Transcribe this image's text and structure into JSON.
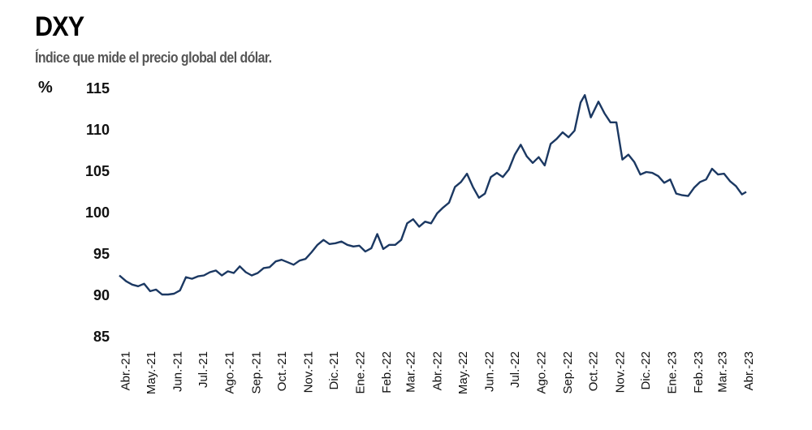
{
  "chart_data": {
    "type": "line",
    "title": "DXY",
    "subtitle": "Índice que mide el precio global del dólar.",
    "ylabel": "%",
    "xlabel": "",
    "ylim": [
      85,
      115
    ],
    "yticks": [
      85,
      90,
      95,
      100,
      105,
      110,
      115
    ],
    "xtick_labels": [
      "Abr.-21",
      "May.-21",
      "Jun.-21",
      "Jul.-21",
      "Ago.-21",
      "Sep.-21",
      "Oct.-21",
      "Nov.-21",
      "Dic.-21",
      "Ene.-22",
      "Feb.-22",
      "Mar.-22",
      "Abr.-22",
      "May.-22",
      "Jun.-22",
      "Jul.-22",
      "Ago.-22",
      "Sep.-22",
      "Oct.-22",
      "Nov.-22",
      "Dic.-22",
      "Ene.-23",
      "Feb.-23",
      "Mar.-23",
      "Abr.-23"
    ],
    "grid": false,
    "line_color": "#1b3862",
    "series": [
      {
        "x": [
          "2021-04-01",
          "2021-04-09",
          "2021-04-16",
          "2021-04-23",
          "2021-04-30",
          "2021-05-07",
          "2021-05-14",
          "2021-05-21",
          "2021-05-28",
          "2021-06-04",
          "2021-06-11",
          "2021-06-18",
          "2021-06-25",
          "2021-07-02",
          "2021-07-09",
          "2021-07-16",
          "2021-07-23",
          "2021-07-30",
          "2021-08-06",
          "2021-08-13",
          "2021-08-20",
          "2021-08-27",
          "2021-09-03",
          "2021-09-10",
          "2021-09-17",
          "2021-09-24",
          "2021-10-01",
          "2021-10-08",
          "2021-10-15",
          "2021-10-22",
          "2021-10-29",
          "2021-11-05",
          "2021-11-12",
          "2021-11-19",
          "2021-11-26",
          "2021-12-03",
          "2021-12-10",
          "2021-12-17",
          "2021-12-24",
          "2021-12-31",
          "2022-01-07",
          "2022-01-14",
          "2022-01-21",
          "2022-01-28",
          "2022-02-04",
          "2022-02-11",
          "2022-02-18",
          "2022-02-25",
          "2022-03-04",
          "2022-03-11",
          "2022-03-18",
          "2022-03-25",
          "2022-04-01",
          "2022-04-08",
          "2022-04-15",
          "2022-04-22",
          "2022-04-29",
          "2022-05-06",
          "2022-05-13",
          "2022-05-20",
          "2022-05-27",
          "2022-06-03",
          "2022-06-10",
          "2022-06-17",
          "2022-06-24",
          "2022-07-01",
          "2022-07-08",
          "2022-07-15",
          "2022-07-22",
          "2022-07-29",
          "2022-08-05",
          "2022-08-12",
          "2022-08-19",
          "2022-08-26",
          "2022-09-02",
          "2022-09-09",
          "2022-09-16",
          "2022-09-23",
          "2022-09-28",
          "2022-10-05",
          "2022-10-14",
          "2022-10-21",
          "2022-10-28",
          "2022-11-04",
          "2022-11-11",
          "2022-11-18",
          "2022-11-25",
          "2022-12-02",
          "2022-12-09",
          "2022-12-16",
          "2022-12-23",
          "2022-12-30",
          "2023-01-06",
          "2023-01-13",
          "2023-01-20",
          "2023-01-27",
          "2023-02-03",
          "2023-02-10",
          "2023-02-17",
          "2023-02-24",
          "2023-03-03",
          "2023-03-10",
          "2023-03-17",
          "2023-03-24",
          "2023-03-31",
          "2023-04-05"
        ],
        "y": [
          92.3,
          91.6,
          91.2,
          91.0,
          91.3,
          90.4,
          90.6,
          90.0,
          90.0,
          90.1,
          90.5,
          92.1,
          91.9,
          92.2,
          92.3,
          92.7,
          92.9,
          92.3,
          92.8,
          92.6,
          93.4,
          92.7,
          92.3,
          92.6,
          93.2,
          93.3,
          94.0,
          94.2,
          93.9,
          93.6,
          94.1,
          94.3,
          95.1,
          96.0,
          96.6,
          96.1,
          96.2,
          96.4,
          96.0,
          95.8,
          95.9,
          95.2,
          95.6,
          97.3,
          95.5,
          96.0,
          96.0,
          96.6,
          98.6,
          99.1,
          98.2,
          98.8,
          98.6,
          99.8,
          100.5,
          101.1,
          103.0,
          103.6,
          104.6,
          103.0,
          101.7,
          102.2,
          104.2,
          104.7,
          104.2,
          105.1,
          106.9,
          108.1,
          106.7,
          105.9,
          106.6,
          105.6,
          108.2,
          108.8,
          109.6,
          109.0,
          109.8,
          113.2,
          114.1,
          111.4,
          113.3,
          111.9,
          110.8,
          110.8,
          106.3,
          106.9,
          106.0,
          104.5,
          104.8,
          104.7,
          104.3,
          103.5,
          103.9,
          102.2,
          102.0,
          101.9,
          102.9,
          103.6,
          103.9,
          105.2,
          104.5,
          104.6,
          103.7,
          103.1,
          102.1,
          102.4
        ]
      }
    ]
  }
}
